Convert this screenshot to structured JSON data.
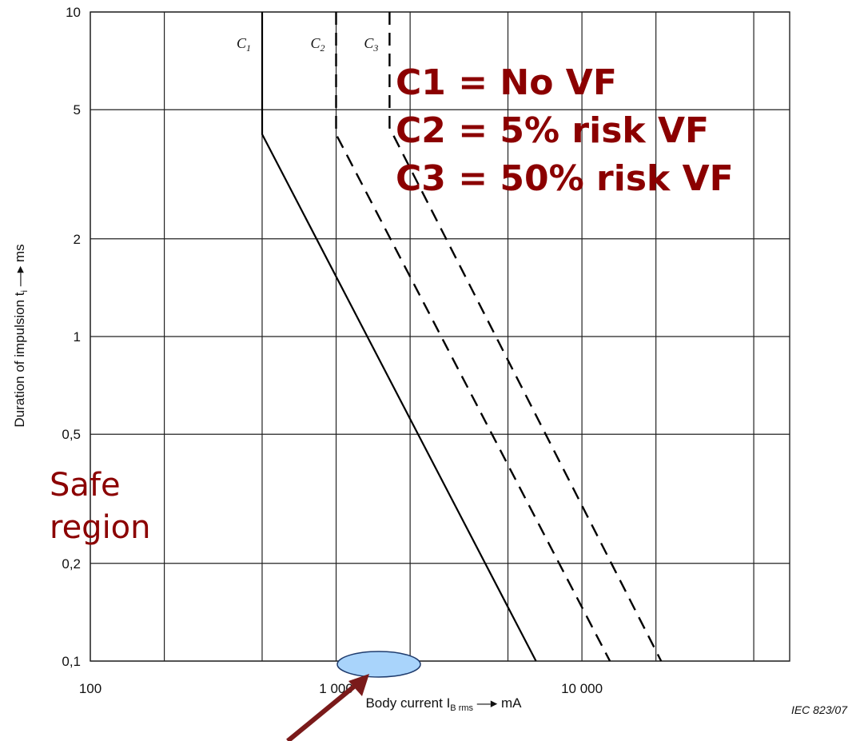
{
  "chart_data": {
    "type": "line",
    "x_scale": "log",
    "y_scale": "log",
    "xlim": [
      100,
      70000
    ],
    "ylim": [
      0.1,
      10
    ],
    "x_ticks": [
      {
        "value": 100,
        "label": "100"
      },
      {
        "value": 1000,
        "label": "1 000"
      },
      {
        "value": 10000,
        "label": "10 000"
      }
    ],
    "y_ticks": [
      {
        "value": 10,
        "label": "10"
      },
      {
        "value": 5,
        "label": "5"
      },
      {
        "value": 2,
        "label": "2"
      },
      {
        "value": 1,
        "label": "1"
      },
      {
        "value": 0.5,
        "label": "0,5"
      },
      {
        "value": 0.2,
        "label": "0,2"
      },
      {
        "value": 0.1,
        "label": "0,1"
      }
    ],
    "grid_x": [
      100,
      200,
      500,
      1000,
      2000,
      5000,
      10000,
      20000,
      50000
    ],
    "grid_y": [
      0.1,
      0.2,
      0.5,
      1,
      2,
      5,
      10
    ],
    "series": [
      {
        "name": "C1",
        "style": "solid",
        "points": [
          [
            500,
            10
          ],
          [
            500,
            4.2
          ],
          [
            6500,
            0.1
          ]
        ]
      },
      {
        "name": "C2",
        "style": "dashed",
        "points": [
          [
            1000,
            10
          ],
          [
            1000,
            4.2
          ],
          [
            13000,
            0.1
          ]
        ]
      },
      {
        "name": "C3",
        "style": "dashed",
        "points": [
          [
            1650,
            10
          ],
          [
            1650,
            4.4
          ],
          [
            21000,
            0.1
          ]
        ]
      }
    ],
    "curve_labels": [
      "C1",
      "C2",
      "C3"
    ],
    "xlabel": "Body current I",
    "xlabel_sub": "B rms",
    "xlabel_unit": "mA",
    "ylabel": "Duration of impulsion t",
    "ylabel_sub": "i",
    "ylabel_unit": "ms",
    "annotations": {
      "legend_lines": [
        "C1 = No VF",
        "C2 = 5% risk VF",
        "C3 = 50% risk VF"
      ],
      "safe_region": [
        "Safe",
        "region"
      ],
      "figure_id": "IEC  823/07"
    },
    "colors": {
      "grid": "#222222",
      "curve": "#000000",
      "annotation": "#8B0000",
      "marker_fill": "#a9d4fb",
      "marker_edge": "#1f3c6e",
      "arrow": "#7a1a1a"
    }
  }
}
